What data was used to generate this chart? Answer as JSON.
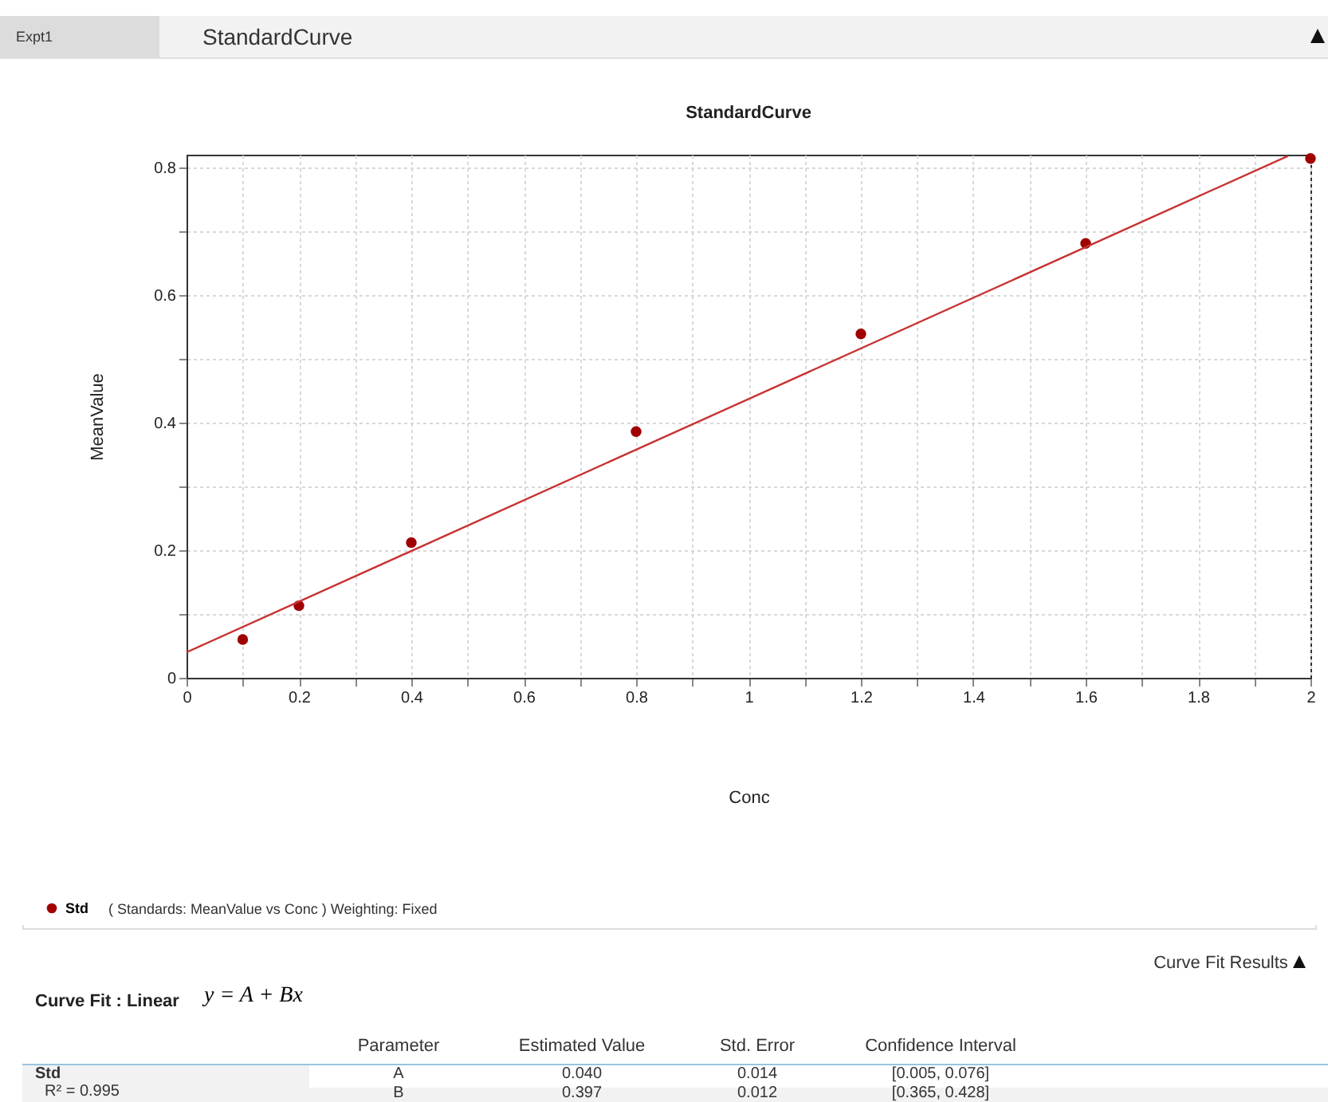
{
  "chart_data": {
    "type": "scatter",
    "title": "StandardCurve",
    "xlabel": "Conc",
    "ylabel": "MeanValue",
    "x": [
      0.1,
      0.2,
      0.4,
      0.8,
      1.2,
      1.6,
      2.0
    ],
    "series": [
      {
        "name": "Std",
        "color": "#a00000",
        "values": [
          0.06,
          0.113,
          0.212,
          0.386,
          0.539,
          0.681,
          0.814
        ]
      },
      {
        "type": "line",
        "marker": "none",
        "color": "#c83232",
        "x": [
          0,
          1.96
        ],
        "values": [
          0.04,
          0.818
        ]
      }
    ],
    "xlim": [
      0,
      2
    ],
    "ylim": [
      0,
      0.82
    ],
    "xticks": [
      0,
      {
        "value": 0.1,
        "label": null
      },
      0.2,
      {
        "value": 0.3,
        "label": null
      },
      0.4,
      {
        "value": 0.5,
        "label": null
      },
      0.6,
      {
        "value": 0.7,
        "label": null
      },
      0.8,
      {
        "value": 0.9,
        "label": null
      },
      1,
      {
        "value": 1.1,
        "label": null
      },
      1.2,
      {
        "value": 1.3,
        "label": null
      },
      1.4,
      {
        "value": 1.5,
        "label": null
      },
      1.6,
      {
        "value": 1.7,
        "label": null
      },
      1.8,
      {
        "value": 1.9,
        "label": null
      },
      2
    ],
    "yticks": [
      0,
      {
        "value": 0.1,
        "label": null
      },
      0.2,
      {
        "value": 0.3,
        "label": null
      },
      0.4,
      {
        "value": 0.5,
        "label": null
      },
      0.6,
      {
        "value": 0.7,
        "label": null
      },
      0.8
    ],
    "grid": true,
    "legend": "bottom",
    "marker": "circle",
    "annotations": [
      "Expt1",
      "StandardCurve",
      "( Standards: MeanValue vs Conc ) Weighting: Fixed",
      "Curve Fit Results",
      "Curve Fit : Linear",
      "y = A + Bx",
      "Parameter",
      "Estimated Value",
      "Std. Error",
      "Confidence Interval",
      "Std",
      "R² = 0.995",
      "A",
      "0.040",
      "0.014",
      "[0.005, 0.076]",
      "B",
      "0.397",
      "0.012",
      "[0.365, 0.428]"
    ]
  }
}
